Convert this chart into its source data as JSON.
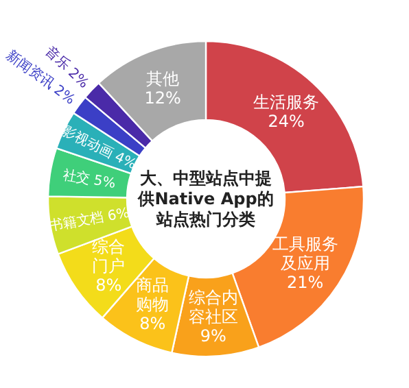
{
  "chart_data": {
    "type": "donut",
    "title": "大、中型站点中提供Native App的站点热门分类",
    "categories": [
      "生活服务",
      "工具服务及应用",
      "综合内容社区",
      "商品购物",
      "综合门户",
      "书籍文档",
      "社交",
      "影视动画",
      "新闻资讯",
      "音乐",
      "其他"
    ],
    "values": [
      24,
      21,
      9,
      8,
      8,
      6,
      5,
      4,
      2,
      2,
      12
    ],
    "colors": [
      "#d0434a",
      "#f97d2f",
      "#f9a11b",
      "#fbc21a",
      "#f3dc1a",
      "#cfe02c",
      "#3fcf7a",
      "#2ab0b8",
      "#3b3fc6",
      "#4a2aa8",
      "#a8a8a8"
    ],
    "value_labels": [
      "24%",
      "21%",
      "9%",
      "8%",
      "8%",
      "6%",
      "5%",
      "4%",
      "2%",
      "2%",
      "12%"
    ]
  }
}
